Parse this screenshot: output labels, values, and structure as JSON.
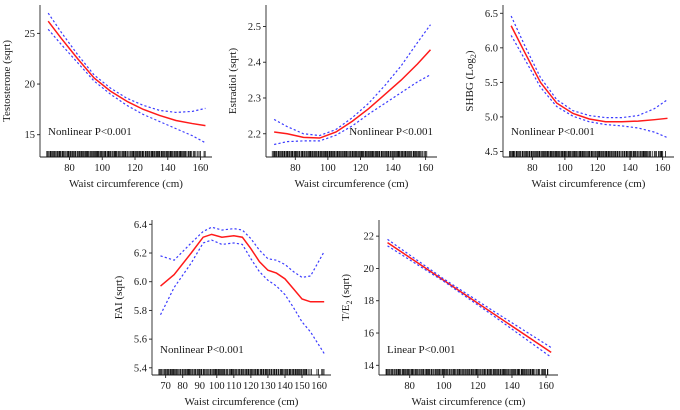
{
  "colors": {
    "fit": "#ff1a1a",
    "ci": "#3b3bff",
    "axis": "#222222",
    "rug": "#111111"
  },
  "chart_data": [
    {
      "type": "line",
      "id": "testosterone",
      "xlabel": "Waist circumference (cm)",
      "ylabel": "Testosterone (sqrt)",
      "annotation": "Nonlinear P<0.001",
      "xlim": [
        62,
        167
      ],
      "ylim": [
        12.8,
        27.8
      ],
      "xticks": [
        80,
        100,
        120,
        140,
        160
      ],
      "yticks": [
        15,
        20,
        25
      ],
      "series": [
        {
          "name": "fit",
          "x": [
            67,
            75,
            85,
            95,
            105,
            115,
            125,
            135,
            145,
            155,
            163
          ],
          "y": [
            26.2,
            24.5,
            22.5,
            20.6,
            19.3,
            18.3,
            17.5,
            16.9,
            16.4,
            16.1,
            15.9
          ]
        },
        {
          "name": "upper",
          "x": [
            67,
            75,
            85,
            95,
            105,
            115,
            125,
            135,
            145,
            155,
            163
          ],
          "y": [
            27.0,
            25.1,
            22.9,
            20.9,
            19.6,
            18.6,
            17.9,
            17.4,
            17.2,
            17.3,
            17.6
          ]
        },
        {
          "name": "lower",
          "x": [
            67,
            75,
            85,
            95,
            105,
            115,
            125,
            135,
            145,
            155,
            163
          ],
          "y": [
            25.4,
            23.9,
            22.1,
            20.3,
            19.0,
            17.9,
            17.0,
            16.3,
            15.6,
            14.9,
            14.2
          ]
        }
      ]
    },
    {
      "type": "line",
      "id": "estradiol",
      "xlabel": "Waist circumference (cm)",
      "ylabel": "Estradiol (sqrt)",
      "annotation": "Nonlinear P<0.001",
      "xlim": [
        62,
        167
      ],
      "ylim": [
        2.135,
        2.56
      ],
      "xticks": [
        80,
        100,
        120,
        140,
        160
      ],
      "yticks": [
        2.2,
        2.3,
        2.4,
        2.5
      ],
      "series": [
        {
          "name": "fit",
          "x": [
            67,
            75,
            85,
            95,
            105,
            115,
            125,
            135,
            145,
            155,
            163
          ],
          "y": [
            2.205,
            2.2,
            2.19,
            2.188,
            2.205,
            2.235,
            2.27,
            2.31,
            2.35,
            2.395,
            2.435
          ]
        },
        {
          "name": "upper",
          "x": [
            67,
            75,
            85,
            95,
            105,
            115,
            125,
            135,
            145,
            155,
            163
          ],
          "y": [
            2.24,
            2.22,
            2.2,
            2.195,
            2.212,
            2.245,
            2.285,
            2.335,
            2.39,
            2.455,
            2.505
          ]
        },
        {
          "name": "lower",
          "x": [
            67,
            75,
            85,
            95,
            105,
            115,
            125,
            135,
            145,
            155,
            163
          ],
          "y": [
            2.17,
            2.178,
            2.18,
            2.18,
            2.196,
            2.222,
            2.255,
            2.285,
            2.315,
            2.345,
            2.365
          ]
        }
      ]
    },
    {
      "type": "line",
      "id": "shbg",
      "xlabel": "Waist circumference (cm)",
      "ylabel": "SHBG (Log",
      "ylabel_sub": "2",
      "ylabel_end": ")",
      "annotation": "Nonlinear P<0.001",
      "xlim": [
        62,
        167
      ],
      "ylim": [
        4.42,
        6.62
      ],
      "xticks": [
        80,
        100,
        120,
        140,
        160
      ],
      "yticks": [
        4.5,
        5.0,
        5.5,
        6.0,
        6.5
      ],
      "series": [
        {
          "name": "fit",
          "x": [
            67,
            75,
            85,
            95,
            105,
            115,
            125,
            135,
            145,
            155,
            163
          ],
          "y": [
            6.32,
            5.95,
            5.5,
            5.2,
            5.05,
            4.97,
            4.93,
            4.93,
            4.94,
            4.96,
            4.98
          ]
        },
        {
          "name": "upper",
          "x": [
            67,
            75,
            85,
            95,
            105,
            115,
            125,
            135,
            145,
            155,
            163
          ],
          "y": [
            6.46,
            6.05,
            5.57,
            5.25,
            5.09,
            5.02,
            4.99,
            4.99,
            5.02,
            5.12,
            5.25
          ]
        },
        {
          "name": "lower",
          "x": [
            67,
            75,
            85,
            95,
            105,
            115,
            125,
            135,
            145,
            155,
            163
          ],
          "y": [
            6.18,
            5.85,
            5.43,
            5.15,
            5.01,
            4.93,
            4.89,
            4.87,
            4.84,
            4.78,
            4.7
          ]
        }
      ]
    },
    {
      "type": "line",
      "id": "fai",
      "xlabel": "Waist circumference (cm)",
      "ylabel": "FAI (sqrt)",
      "annotation": "Nonlinear P<0.001",
      "xlim": [
        62,
        167
      ],
      "ylim": [
        5.35,
        6.43
      ],
      "xticks": [
        70,
        80,
        90,
        100,
        110,
        120,
        130,
        140,
        150,
        160
      ],
      "yticks": [
        5.4,
        5.6,
        5.8,
        6.0,
        6.2,
        6.4
      ],
      "series": [
        {
          "name": "fit",
          "x": [
            67,
            75,
            85,
            92,
            97,
            103,
            110,
            115,
            120,
            125,
            130,
            135,
            140,
            145,
            150,
            155,
            163
          ],
          "y": [
            5.97,
            6.05,
            6.2,
            6.31,
            6.33,
            6.31,
            6.32,
            6.31,
            6.23,
            6.14,
            6.08,
            6.06,
            6.02,
            5.95,
            5.88,
            5.86,
            5.86
          ]
        },
        {
          "name": "upper",
          "x": [
            67,
            75,
            85,
            92,
            97,
            103,
            110,
            115,
            120,
            125,
            130,
            135,
            140,
            145,
            150,
            155,
            163
          ],
          "y": [
            6.18,
            6.15,
            6.27,
            6.35,
            6.38,
            6.36,
            6.37,
            6.36,
            6.3,
            6.22,
            6.16,
            6.15,
            6.12,
            6.07,
            6.03,
            6.04,
            6.21
          ]
        },
        {
          "name": "lower",
          "x": [
            67,
            75,
            85,
            92,
            97,
            103,
            110,
            115,
            120,
            125,
            130,
            135,
            140,
            145,
            150,
            155,
            163
          ],
          "y": [
            5.77,
            5.96,
            6.13,
            6.27,
            6.29,
            6.26,
            6.27,
            6.26,
            6.16,
            6.07,
            6.01,
            5.97,
            5.91,
            5.82,
            5.72,
            5.65,
            5.5
          ]
        }
      ]
    },
    {
      "type": "line",
      "id": "te2",
      "xlabel": "Waist circumference (cm)",
      "ylabel": "T/E",
      "ylabel_sub": "2",
      "ylabel_end": " (sqrt)",
      "annotation": "Linear P<0.001",
      "xlim": [
        62,
        167
      ],
      "ylim": [
        13.4,
        23.0
      ],
      "xticks": [
        80,
        100,
        120,
        140,
        160
      ],
      "yticks": [
        14,
        16,
        18,
        20,
        22
      ],
      "series": [
        {
          "name": "fit",
          "x": [
            67,
            163
          ],
          "y": [
            21.6,
            14.8
          ]
        },
        {
          "name": "upper",
          "x": [
            67,
            100,
            130,
            163
          ],
          "y": [
            21.8,
            19.35,
            17.3,
            15.1
          ]
        },
        {
          "name": "lower",
          "x": [
            67,
            100,
            130,
            163
          ],
          "y": [
            21.4,
            19.2,
            17.0,
            14.5
          ]
        }
      ]
    }
  ]
}
